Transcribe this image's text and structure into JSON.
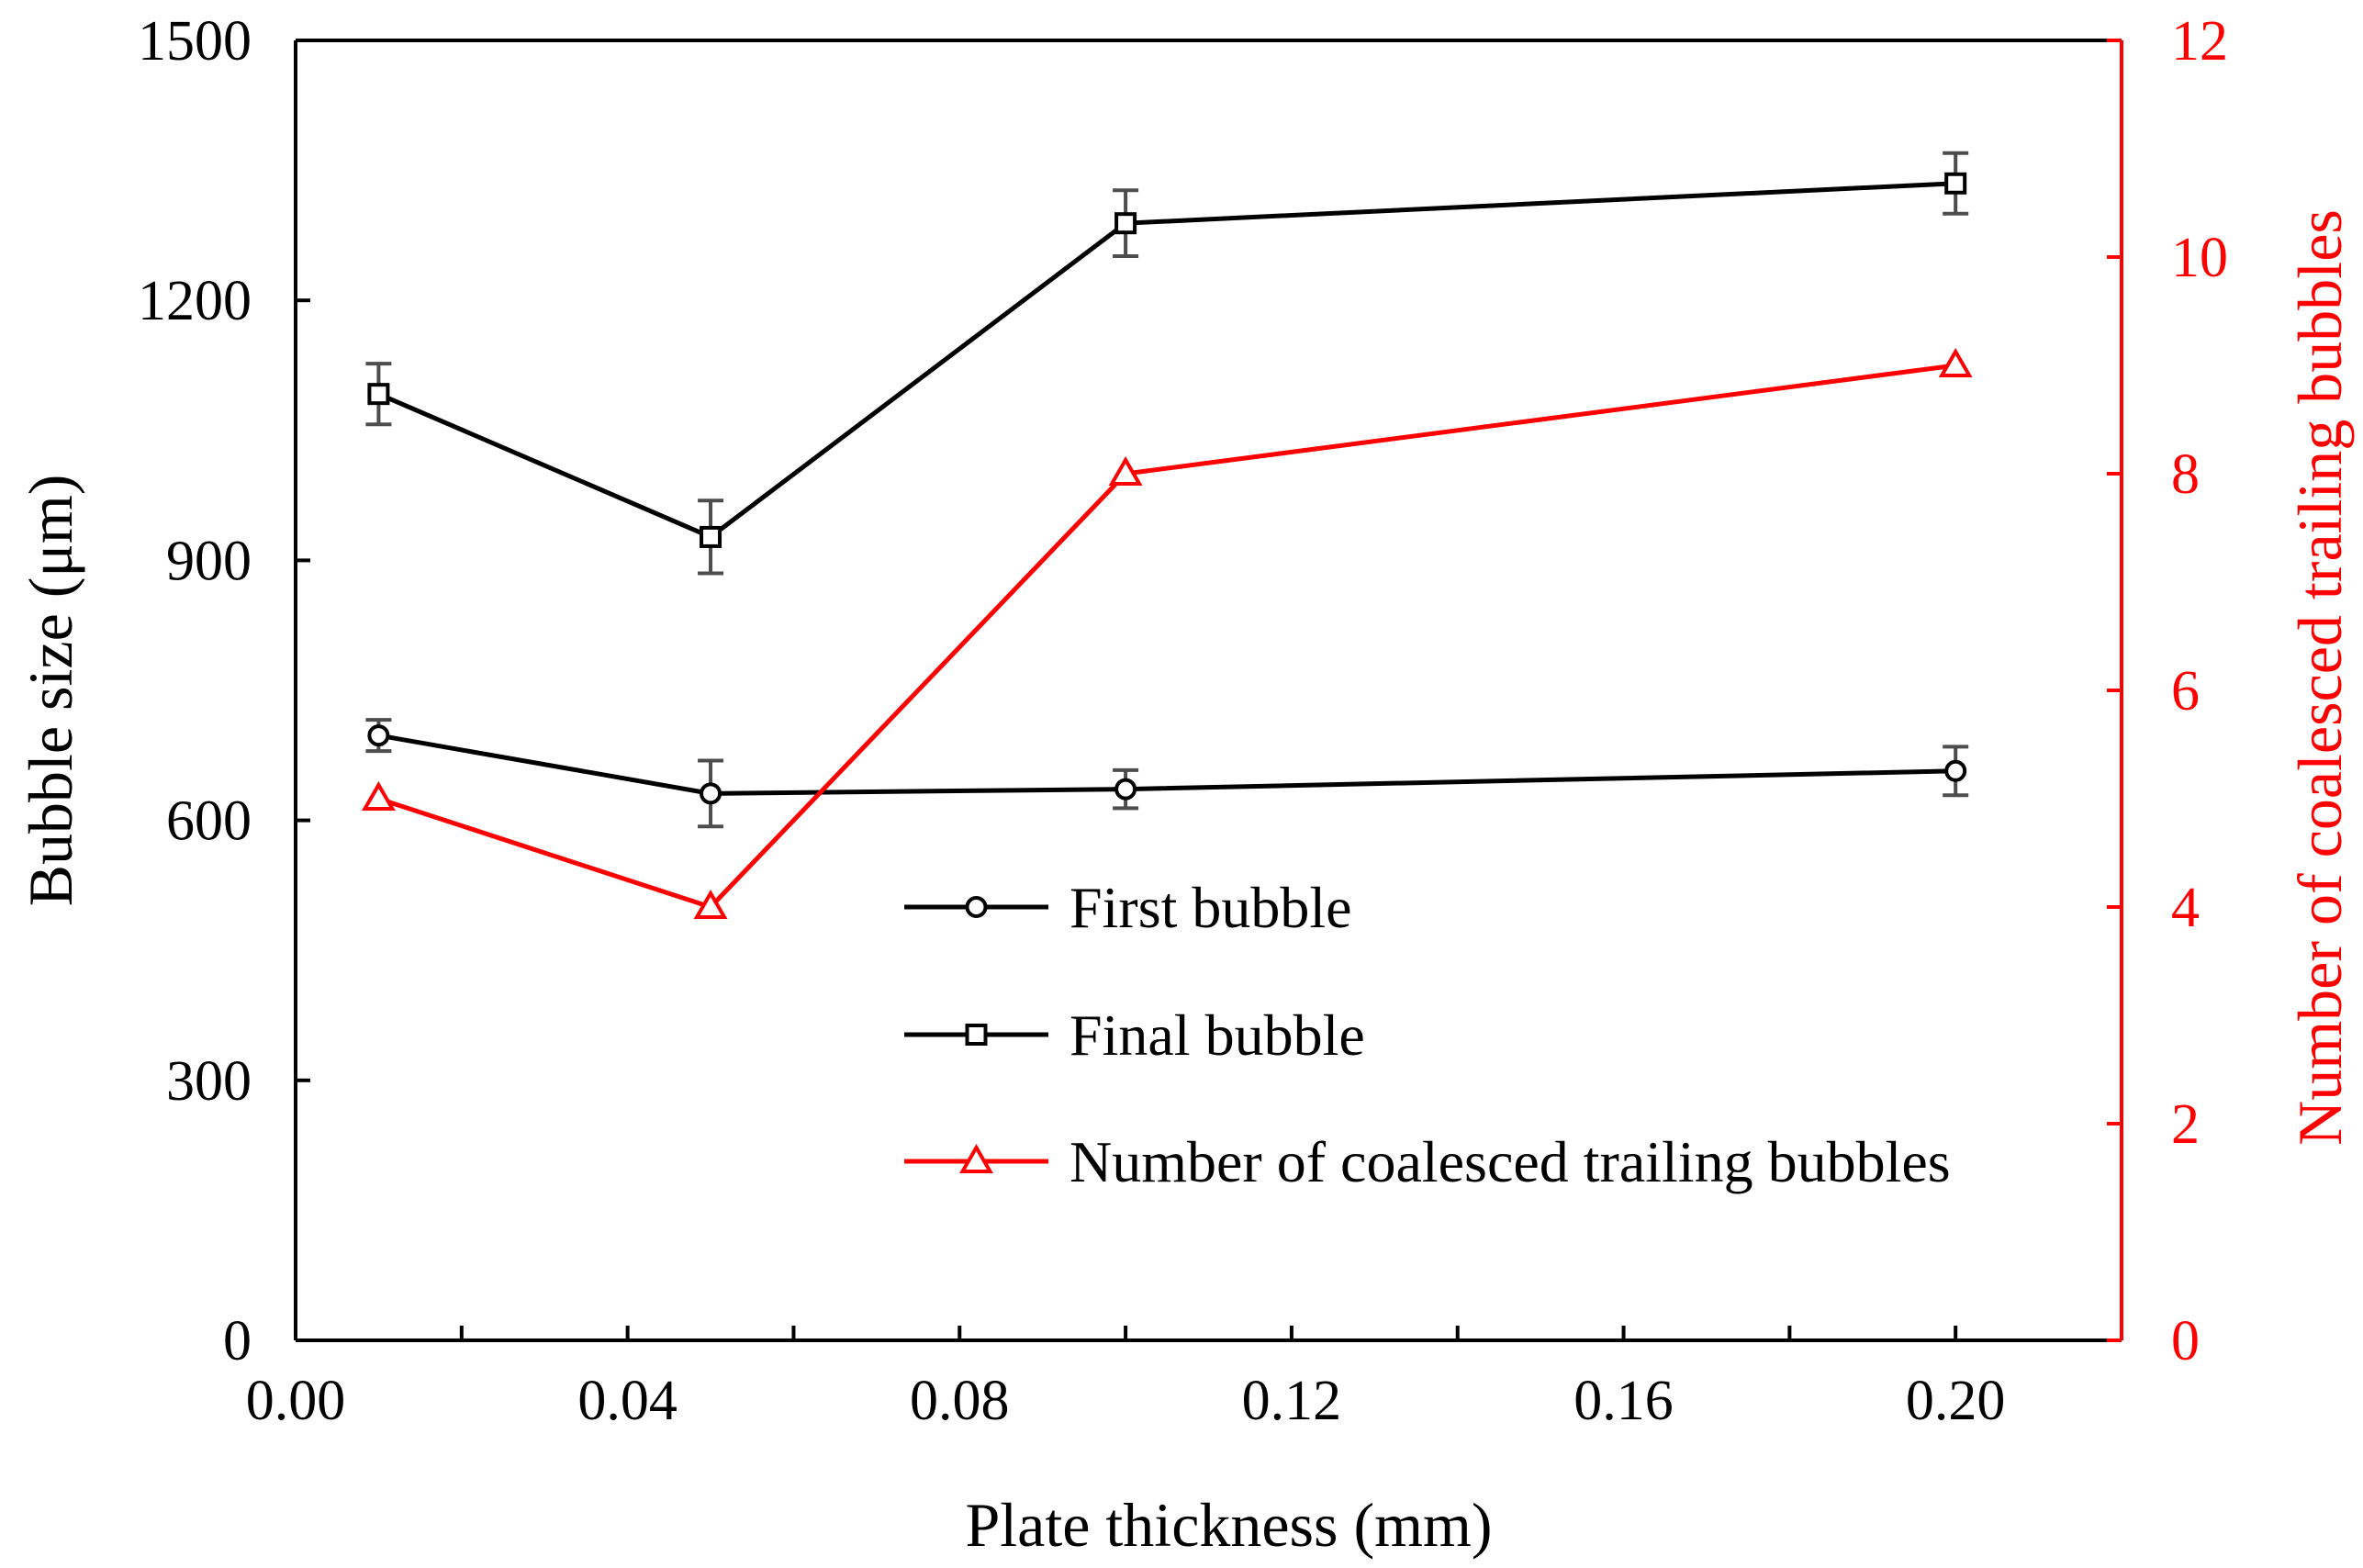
{
  "chart_data": {
    "type": "line",
    "title": "",
    "xlabel": "Plate thickness (mm)",
    "ylabel": "Bubble size (μm)",
    "y2label": "Number of coalesced trailing bubbles",
    "xlim": [
      0.0,
      0.22
    ],
    "ylim": [
      0,
      1500
    ],
    "y2lim": [
      0,
      12
    ],
    "x_ticks": [
      "0.00",
      "0.04",
      "0.08",
      "0.12",
      "0.16",
      "0.20"
    ],
    "x_tick_values": [
      0.0,
      0.04,
      0.08,
      0.12,
      0.16,
      0.2
    ],
    "x_minor_ticks": [
      0.02,
      0.06,
      0.1,
      0.14,
      0.18
    ],
    "y_ticks": [
      "0",
      "300",
      "600",
      "900",
      "1200",
      "1500"
    ],
    "y_tick_values": [
      0,
      300,
      600,
      900,
      1200,
      1500
    ],
    "y2_ticks": [
      "0",
      "2",
      "4",
      "6",
      "8",
      "10",
      "12"
    ],
    "y2_tick_values": [
      0,
      2,
      4,
      6,
      8,
      10,
      12
    ],
    "grid": false,
    "legend_position": "bottom-center",
    "series": [
      {
        "name": "First bubble",
        "axis": "left",
        "marker": "circle",
        "color": "#000000",
        "x": [
          0.01,
          0.05,
          0.1,
          0.2
        ],
        "values": [
          698,
          631,
          636,
          657
        ],
        "errors": [
          18,
          38,
          22,
          28
        ]
      },
      {
        "name": "Final bubble",
        "axis": "left",
        "marker": "square",
        "color": "#000000",
        "x": [
          0.01,
          0.05,
          0.1,
          0.2
        ],
        "values": [
          1092,
          927,
          1289,
          1335
        ],
        "errors": [
          35,
          42,
          38,
          35
        ]
      },
      {
        "name": "Number of coalesced trailing bubbles",
        "axis": "right",
        "marker": "triangle",
        "color": "#ff0000",
        "x": [
          0.01,
          0.05,
          0.1,
          0.2
        ],
        "values": [
          5,
          4,
          8,
          9
        ],
        "errors": []
      }
    ],
    "colors": {
      "primary": "#000000",
      "secondary": "#ff0000",
      "errorbar": "#4d4d4d"
    }
  }
}
